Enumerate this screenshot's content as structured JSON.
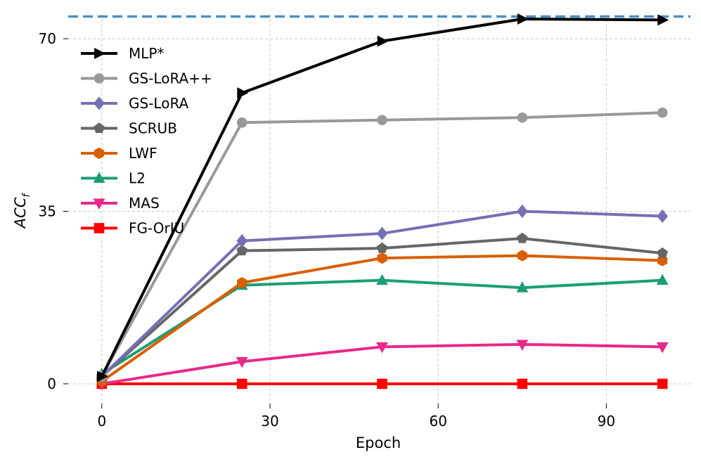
{
  "chart_data": {
    "type": "line",
    "title": "",
    "xlabel": "Epoch",
    "ylabel": "ACC_f",
    "ylabel_main": "ACC",
    "ylabel_sub": "f",
    "xlim": [
      -6,
      105
    ],
    "ylim": [
      -4,
      75
    ],
    "xticks": [
      0,
      30,
      60,
      90
    ],
    "yticks": [
      0,
      35,
      70
    ],
    "xtick_labels": [
      "0",
      "30",
      "60",
      "90"
    ],
    "ytick_labels": [
      "0",
      "35",
      "70"
    ],
    "grid": true,
    "legend_position": "top-left",
    "reference_line": {
      "y": 74.5,
      "color": "#4a90c2",
      "style": "dashed"
    },
    "x": [
      0,
      25,
      50,
      75,
      100
    ],
    "series": [
      {
        "name": "MLP*",
        "color": "#000000",
        "marker": "triangle-right",
        "values": [
          1.5,
          59.0,
          69.5,
          74.0,
          73.8
        ]
      },
      {
        "name": "GS-LoRA++",
        "color": "#999999",
        "marker": "circle",
        "values": [
          1.5,
          53.0,
          53.5,
          54.0,
          55.0
        ]
      },
      {
        "name": "GS-LoRA",
        "color": "#7570b3",
        "marker": "diamond",
        "values": [
          1.5,
          29.0,
          30.5,
          35.0,
          34.0
        ]
      },
      {
        "name": "SCRUB",
        "color": "#666666",
        "marker": "pentagon",
        "values": [
          1.5,
          27.0,
          27.5,
          29.5,
          26.5
        ]
      },
      {
        "name": "LWF",
        "color": "#d95f02",
        "marker": "hexagon",
        "values": [
          0.5,
          20.5,
          25.5,
          26.0,
          25.0
        ]
      },
      {
        "name": "L2",
        "color": "#1b9e77",
        "marker": "triangle-up",
        "values": [
          2.0,
          20.0,
          21.0,
          19.5,
          21.0
        ]
      },
      {
        "name": "MAS",
        "color": "#e7298a",
        "marker": "triangle-down",
        "values": [
          0.0,
          4.5,
          7.5,
          8.0,
          7.5
        ]
      },
      {
        "name": "FG-OrIU",
        "color": "#ff0000",
        "marker": "square",
        "values": [
          0.0,
          0.0,
          0.0,
          0.0,
          0.0
        ]
      }
    ]
  }
}
